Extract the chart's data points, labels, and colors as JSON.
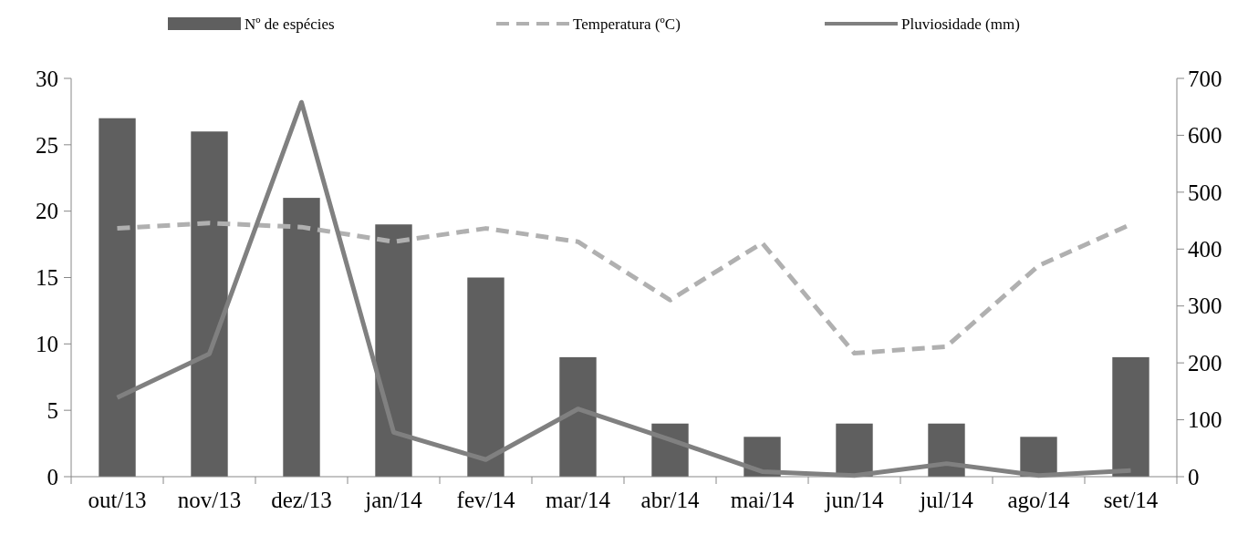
{
  "chart_data": {
    "type": "bar",
    "categories": [
      "out/13",
      "nov/13",
      "dez/13",
      "jan/14",
      "fev/14",
      "mar/14",
      "abr/14",
      "mai/14",
      "jun/14",
      "jul/14",
      "ago/14",
      "set/14"
    ],
    "series": [
      {
        "name": "Nº de espécies",
        "color": "#5f5f5f",
        "values": [
          27,
          26,
          21,
          19,
          15,
          9,
          4,
          3,
          4,
          4,
          3,
          9
        ]
      },
      {
        "name": "Temperatura (ºC)",
        "type": "line",
        "color": "#b0b0b0",
        "line_style": "dashed",
        "values": [
          18.7,
          19.1,
          18.8,
          17.7,
          18.7,
          17.7,
          13.3,
          17.6,
          9.3,
          9.8,
          15.9,
          19.0
        ]
      },
      {
        "name": "Pluviosidade (mm)",
        "type": "line",
        "color": "#808080",
        "line_style": "solid",
        "axis": "y2",
        "values": [
          139,
          216,
          658,
          78,
          30,
          119,
          65,
          9,
          2,
          23,
          2,
          11
        ]
      }
    ],
    "ylim": [
      0,
      30
    ],
    "yticks": [
      0,
      5,
      10,
      15,
      20,
      25,
      30
    ],
    "y2lim": [
      0,
      700
    ],
    "y2ticks": [
      0,
      100,
      200,
      300,
      400,
      500,
      600,
      700
    ],
    "grid": false,
    "legend": "top",
    "marker": "none"
  }
}
